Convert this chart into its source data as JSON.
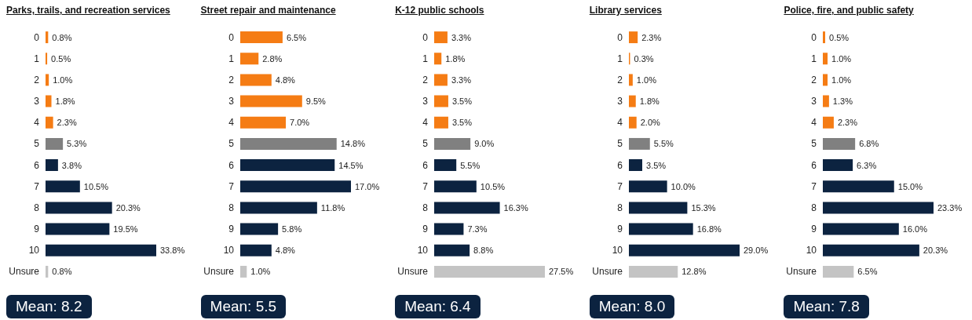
{
  "chart_data": [
    {
      "type": "bar",
      "orientation": "horizontal",
      "title": "Parks, trails, and recreation services",
      "categories": [
        "0",
        "1",
        "2",
        "3",
        "4",
        "5",
        "6",
        "7",
        "8",
        "9",
        "10",
        "Unsure"
      ],
      "values": [
        0.8,
        0.5,
        1.0,
        1.8,
        2.3,
        5.3,
        3.8,
        10.5,
        20.3,
        19.5,
        33.8,
        0.8
      ],
      "value_labels": [
        "0.8%",
        "0.5%",
        "1.0%",
        "1.8%",
        "2.3%",
        "5.3%",
        "3.8%",
        "10.5%",
        "20.3%",
        "19.5%",
        "33.8%",
        "0.8%"
      ],
      "colors": [
        "#f57c14",
        "#f57c14",
        "#f57c14",
        "#f57c14",
        "#f57c14",
        "#808080",
        "#0c2340",
        "#0c2340",
        "#0c2340",
        "#0c2340",
        "#0c2340",
        "#c4c4c4"
      ],
      "annotations": [
        "Mean: 8.2"
      ]
    },
    {
      "type": "bar",
      "orientation": "horizontal",
      "title": "Street repair and maintenance",
      "categories": [
        "0",
        "1",
        "2",
        "3",
        "4",
        "5",
        "6",
        "7",
        "8",
        "9",
        "10",
        "Unsure"
      ],
      "values": [
        6.5,
        2.8,
        4.8,
        9.5,
        7.0,
        14.8,
        14.5,
        17.0,
        11.8,
        5.8,
        4.8,
        1.0
      ],
      "value_labels": [
        "6.5%",
        "2.8%",
        "4.8%",
        "9.5%",
        "7.0%",
        "14.8%",
        "14.5%",
        "17.0%",
        "11.8%",
        "5.8%",
        "4.8%",
        "1.0%"
      ],
      "colors": [
        "#f57c14",
        "#f57c14",
        "#f57c14",
        "#f57c14",
        "#f57c14",
        "#808080",
        "#0c2340",
        "#0c2340",
        "#0c2340",
        "#0c2340",
        "#0c2340",
        "#c4c4c4"
      ],
      "annotations": [
        "Mean: 5.5"
      ]
    },
    {
      "type": "bar",
      "orientation": "horizontal",
      "title": "K-12 public schools",
      "categories": [
        "0",
        "1",
        "2",
        "3",
        "4",
        "5",
        "6",
        "7",
        "8",
        "9",
        "10",
        "Unsure"
      ],
      "values": [
        3.3,
        1.8,
        3.3,
        3.5,
        3.5,
        9.0,
        5.5,
        10.5,
        16.3,
        7.3,
        8.8,
        27.5
      ],
      "value_labels": [
        "3.3%",
        "1.8%",
        "3.3%",
        "3.5%",
        "3.5%",
        "9.0%",
        "5.5%",
        "10.5%",
        "16.3%",
        "7.3%",
        "8.8%",
        "27.5%"
      ],
      "colors": [
        "#f57c14",
        "#f57c14",
        "#f57c14",
        "#f57c14",
        "#f57c14",
        "#808080",
        "#0c2340",
        "#0c2340",
        "#0c2340",
        "#0c2340",
        "#0c2340",
        "#c4c4c4"
      ],
      "annotations": [
        "Mean: 6.4"
      ]
    },
    {
      "type": "bar",
      "orientation": "horizontal",
      "title": "Library services",
      "categories": [
        "0",
        "1",
        "2",
        "3",
        "4",
        "5",
        "6",
        "7",
        "8",
        "9",
        "10",
        "Unsure"
      ],
      "values": [
        2.3,
        0.3,
        1.0,
        1.8,
        2.0,
        5.5,
        3.5,
        10.0,
        15.3,
        16.8,
        29.0,
        12.8
      ],
      "value_labels": [
        "2.3%",
        "0.3%",
        "1.0%",
        "1.8%",
        "2.0%",
        "5.5%",
        "3.5%",
        "10.0%",
        "15.3%",
        "16.8%",
        "29.0%",
        "12.8%"
      ],
      "colors": [
        "#f57c14",
        "#f57c14",
        "#f57c14",
        "#f57c14",
        "#f57c14",
        "#808080",
        "#0c2340",
        "#0c2340",
        "#0c2340",
        "#0c2340",
        "#0c2340",
        "#c4c4c4"
      ],
      "annotations": [
        "Mean: 8.0"
      ]
    },
    {
      "type": "bar",
      "orientation": "horizontal",
      "title": "Police, fire, and public safety",
      "categories": [
        "0",
        "1",
        "2",
        "3",
        "4",
        "5",
        "6",
        "7",
        "8",
        "9",
        "10",
        "Unsure"
      ],
      "values": [
        0.5,
        1.0,
        1.0,
        1.3,
        2.3,
        6.8,
        6.3,
        15.0,
        23.3,
        16.0,
        20.3,
        6.5
      ],
      "value_labels": [
        "0.5%",
        "1.0%",
        "1.0%",
        "1.3%",
        "2.3%",
        "6.8%",
        "6.3%",
        "15.0%",
        "23.3%",
        "16.0%",
        "20.3%",
        "6.5%"
      ],
      "colors": [
        "#f57c14",
        "#f57c14",
        "#f57c14",
        "#f57c14",
        "#f57c14",
        "#808080",
        "#0c2340",
        "#0c2340",
        "#0c2340",
        "#0c2340",
        "#0c2340",
        "#c4c4c4"
      ],
      "annotations": [
        "Mean: 7.8"
      ]
    }
  ]
}
